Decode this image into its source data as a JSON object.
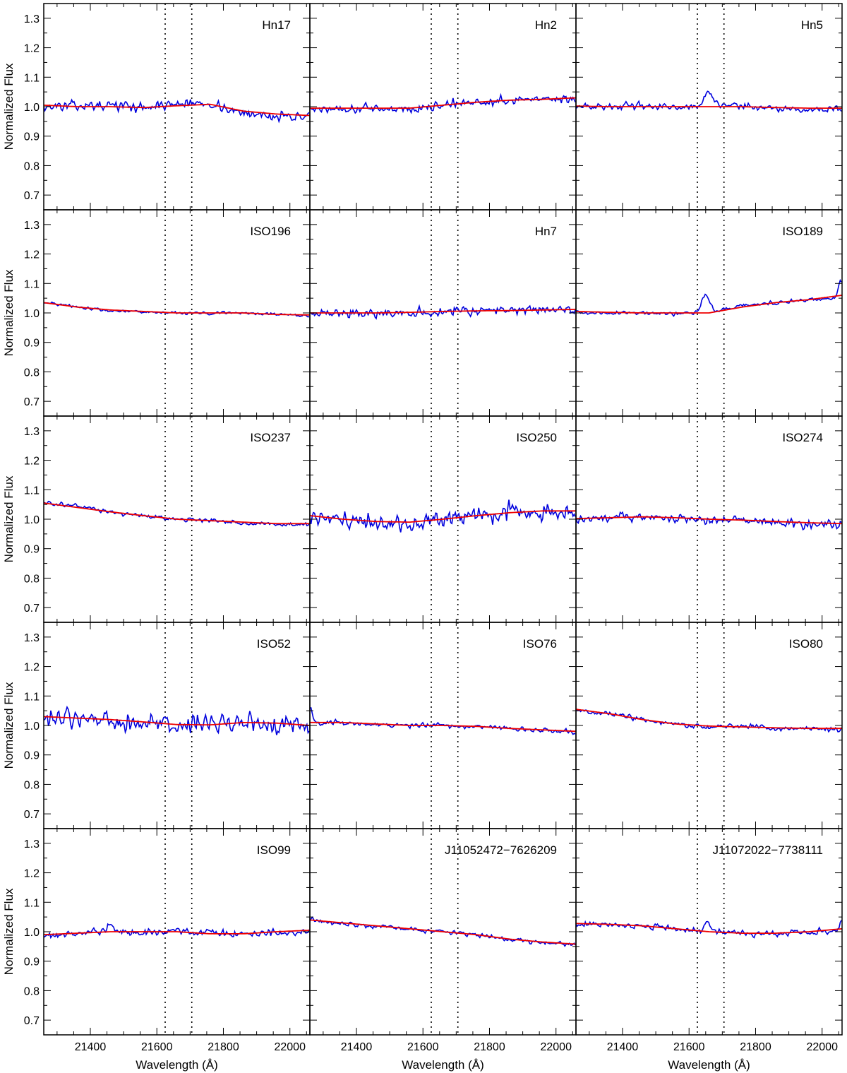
{
  "figure": {
    "ylabel": "Normalized Flux",
    "xlabel": "Wavelength (Å)",
    "colors": {
      "spectrum": "#0000dd",
      "model": "#ee0000",
      "axes": "#000000"
    }
  },
  "chart_data": {
    "type": "line",
    "layout": {
      "rows": 5,
      "cols": 3,
      "shared_axes": true
    },
    "xlim": [
      21260,
      22060
    ],
    "ylim": [
      0.65,
      1.35
    ],
    "x_ticks": [
      21400,
      21600,
      21800,
      22000
    ],
    "y_ticks": [
      0.7,
      0.8,
      0.9,
      1.0,
      1.1,
      1.2,
      1.3
    ],
    "y_tick_labels": [
      "0.7",
      "0.8",
      "0.9",
      "1.0",
      "1.1",
      "1.2",
      "1.3"
    ],
    "x_tick_labels": [
      "21400",
      "21600",
      "21800",
      "22000"
    ],
    "vertical_lines": [
      21625,
      21705
    ],
    "x": [
      21260,
      21360,
      21460,
      21560,
      21660,
      21760,
      21860,
      21960,
      22060
    ],
    "grid": false,
    "panels": [
      {
        "label": "Hn17",
        "model": [
          1.005,
          1.0,
          1.0,
          0.997,
          1.003,
          1.008,
          0.985,
          0.975,
          0.97
        ],
        "observed": [
          1.0,
          1.003,
          1.005,
          0.998,
          1.01,
          1.012,
          0.975,
          0.97,
          0.965
        ],
        "noise": 0.013,
        "features": []
      },
      {
        "label": "Hn2",
        "model": [
          0.995,
          0.995,
          0.995,
          0.995,
          1.005,
          1.015,
          1.022,
          1.025,
          1.03
        ],
        "observed": [
          0.99,
          0.995,
          0.995,
          0.99,
          1.005,
          1.015,
          1.02,
          1.03,
          1.025
        ],
        "noise": 0.012,
        "features": []
      },
      {
        "label": "Hn5",
        "model": [
          1.002,
          1.0,
          1.0,
          1.0,
          1.0,
          1.0,
          0.997,
          0.995,
          0.995
        ],
        "observed": [
          1.002,
          1.0,
          1.002,
          0.998,
          1.005,
          1.003,
          0.995,
          0.99,
          0.995
        ],
        "noise": 0.009,
        "features": [
          {
            "x": 21660,
            "amp": 0.04,
            "width": 14
          }
        ]
      },
      {
        "label": "ISO196",
        "model": [
          1.035,
          1.02,
          1.01,
          1.005,
          1.0,
          1.0,
          1.0,
          0.995,
          0.993
        ],
        "observed": [
          1.035,
          1.02,
          1.008,
          1.003,
          1.0,
          1.0,
          1.0,
          0.997,
          0.99
        ],
        "noise": 0.004,
        "features": []
      },
      {
        "label": "Hn7",
        "model": [
          1.0,
          1.0,
          1.0,
          1.002,
          1.005,
          1.007,
          1.008,
          1.01,
          1.012
        ],
        "observed": [
          0.998,
          1.0,
          1.0,
          1.002,
          1.005,
          1.008,
          1.01,
          1.012,
          1.01
        ],
        "noise": 0.013,
        "features": []
      },
      {
        "label": "ISO189",
        "model": [
          1.005,
          1.002,
          1.0,
          1.0,
          1.0,
          1.02,
          1.035,
          1.045,
          1.06
        ],
        "observed": [
          1.0,
          1.0,
          1.0,
          0.997,
          1.0,
          1.025,
          1.035,
          1.045,
          1.05
        ],
        "noise": 0.005,
        "features": [
          {
            "x": 21650,
            "amp": 0.065,
            "width": 12
          },
          {
            "x": 22055,
            "amp": 0.06,
            "width": 6
          }
        ]
      },
      {
        "label": "ISO237",
        "model": [
          1.055,
          1.04,
          1.025,
          1.012,
          1.0,
          0.995,
          0.99,
          0.985,
          0.985
        ],
        "observed": [
          1.055,
          1.045,
          1.025,
          1.01,
          1.0,
          0.995,
          0.985,
          0.985,
          0.98
        ],
        "noise": 0.006,
        "features": []
      },
      {
        "label": "ISO250",
        "model": [
          1.012,
          1.0,
          0.992,
          0.99,
          1.0,
          1.012,
          1.022,
          1.028,
          1.028
        ],
        "observed": [
          1.01,
          1.0,
          0.99,
          0.985,
          1.0,
          1.015,
          1.025,
          1.02,
          1.02
        ],
        "noise": 0.024,
        "features": []
      },
      {
        "label": "ISO274",
        "model": [
          1.002,
          1.005,
          1.008,
          1.005,
          1.0,
          0.997,
          0.992,
          0.988,
          0.985
        ],
        "observed": [
          1.0,
          1.005,
          1.01,
          1.005,
          1.0,
          0.998,
          0.99,
          0.985,
          0.98
        ],
        "noise": 0.012,
        "features": []
      },
      {
        "label": "ISO52",
        "model": [
          1.03,
          1.025,
          1.02,
          1.012,
          1.003,
          1.002,
          1.01,
          1.008,
          1.0
        ],
        "observed": [
          1.02,
          1.025,
          1.02,
          1.01,
          0.995,
          1.015,
          1.01,
          1.0,
          1.0
        ],
        "noise": 0.025,
        "features": []
      },
      {
        "label": "ISO76",
        "model": [
          1.01,
          1.01,
          1.005,
          1.0,
          1.0,
          0.997,
          0.99,
          0.985,
          0.98
        ],
        "observed": [
          1.01,
          1.008,
          1.003,
          1.0,
          1.0,
          0.997,
          0.99,
          0.985,
          0.975
        ],
        "noise": 0.007,
        "features": [
          {
            "x": 21262,
            "amp": 0.05,
            "width": 5
          }
        ]
      },
      {
        "label": "ISO80",
        "model": [
          1.055,
          1.04,
          1.02,
          1.005,
          0.998,
          0.995,
          0.992,
          0.99,
          0.99
        ],
        "observed": [
          1.05,
          1.04,
          1.02,
          1.005,
          0.995,
          0.998,
          0.99,
          0.99,
          0.985
        ],
        "noise": 0.007,
        "features": []
      },
      {
        "label": "ISO99",
        "model": [
          0.99,
          0.995,
          1.0,
          1.0,
          1.0,
          0.993,
          0.993,
          1.0,
          1.005
        ],
        "observed": [
          0.985,
          0.995,
          1.005,
          0.995,
          1.003,
          0.995,
          0.993,
          0.995,
          1.0
        ],
        "noise": 0.01,
        "features": [
          {
            "x": 21460,
            "amp": 0.03,
            "width": 8
          }
        ]
      },
      {
        "label": "J11052472−7626209",
        "model": [
          1.04,
          1.03,
          1.02,
          1.01,
          1.0,
          0.99,
          0.975,
          0.965,
          0.958
        ],
        "observed": [
          1.04,
          1.028,
          1.018,
          1.01,
          1.0,
          0.99,
          0.972,
          0.965,
          0.955
        ],
        "noise": 0.006,
        "features": []
      },
      {
        "label": "J11072022−7738111",
        "model": [
          1.028,
          1.025,
          1.02,
          1.01,
          1.0,
          0.995,
          0.995,
          1.0,
          1.01
        ],
        "observed": [
          1.028,
          1.025,
          1.02,
          1.01,
          1.003,
          0.995,
          0.993,
          0.997,
          1.005
        ],
        "noise": 0.008,
        "features": [
          {
            "x": 21655,
            "amp": 0.035,
            "width": 7
          },
          {
            "x": 22058,
            "amp": 0.03,
            "width": 5
          }
        ]
      }
    ]
  }
}
